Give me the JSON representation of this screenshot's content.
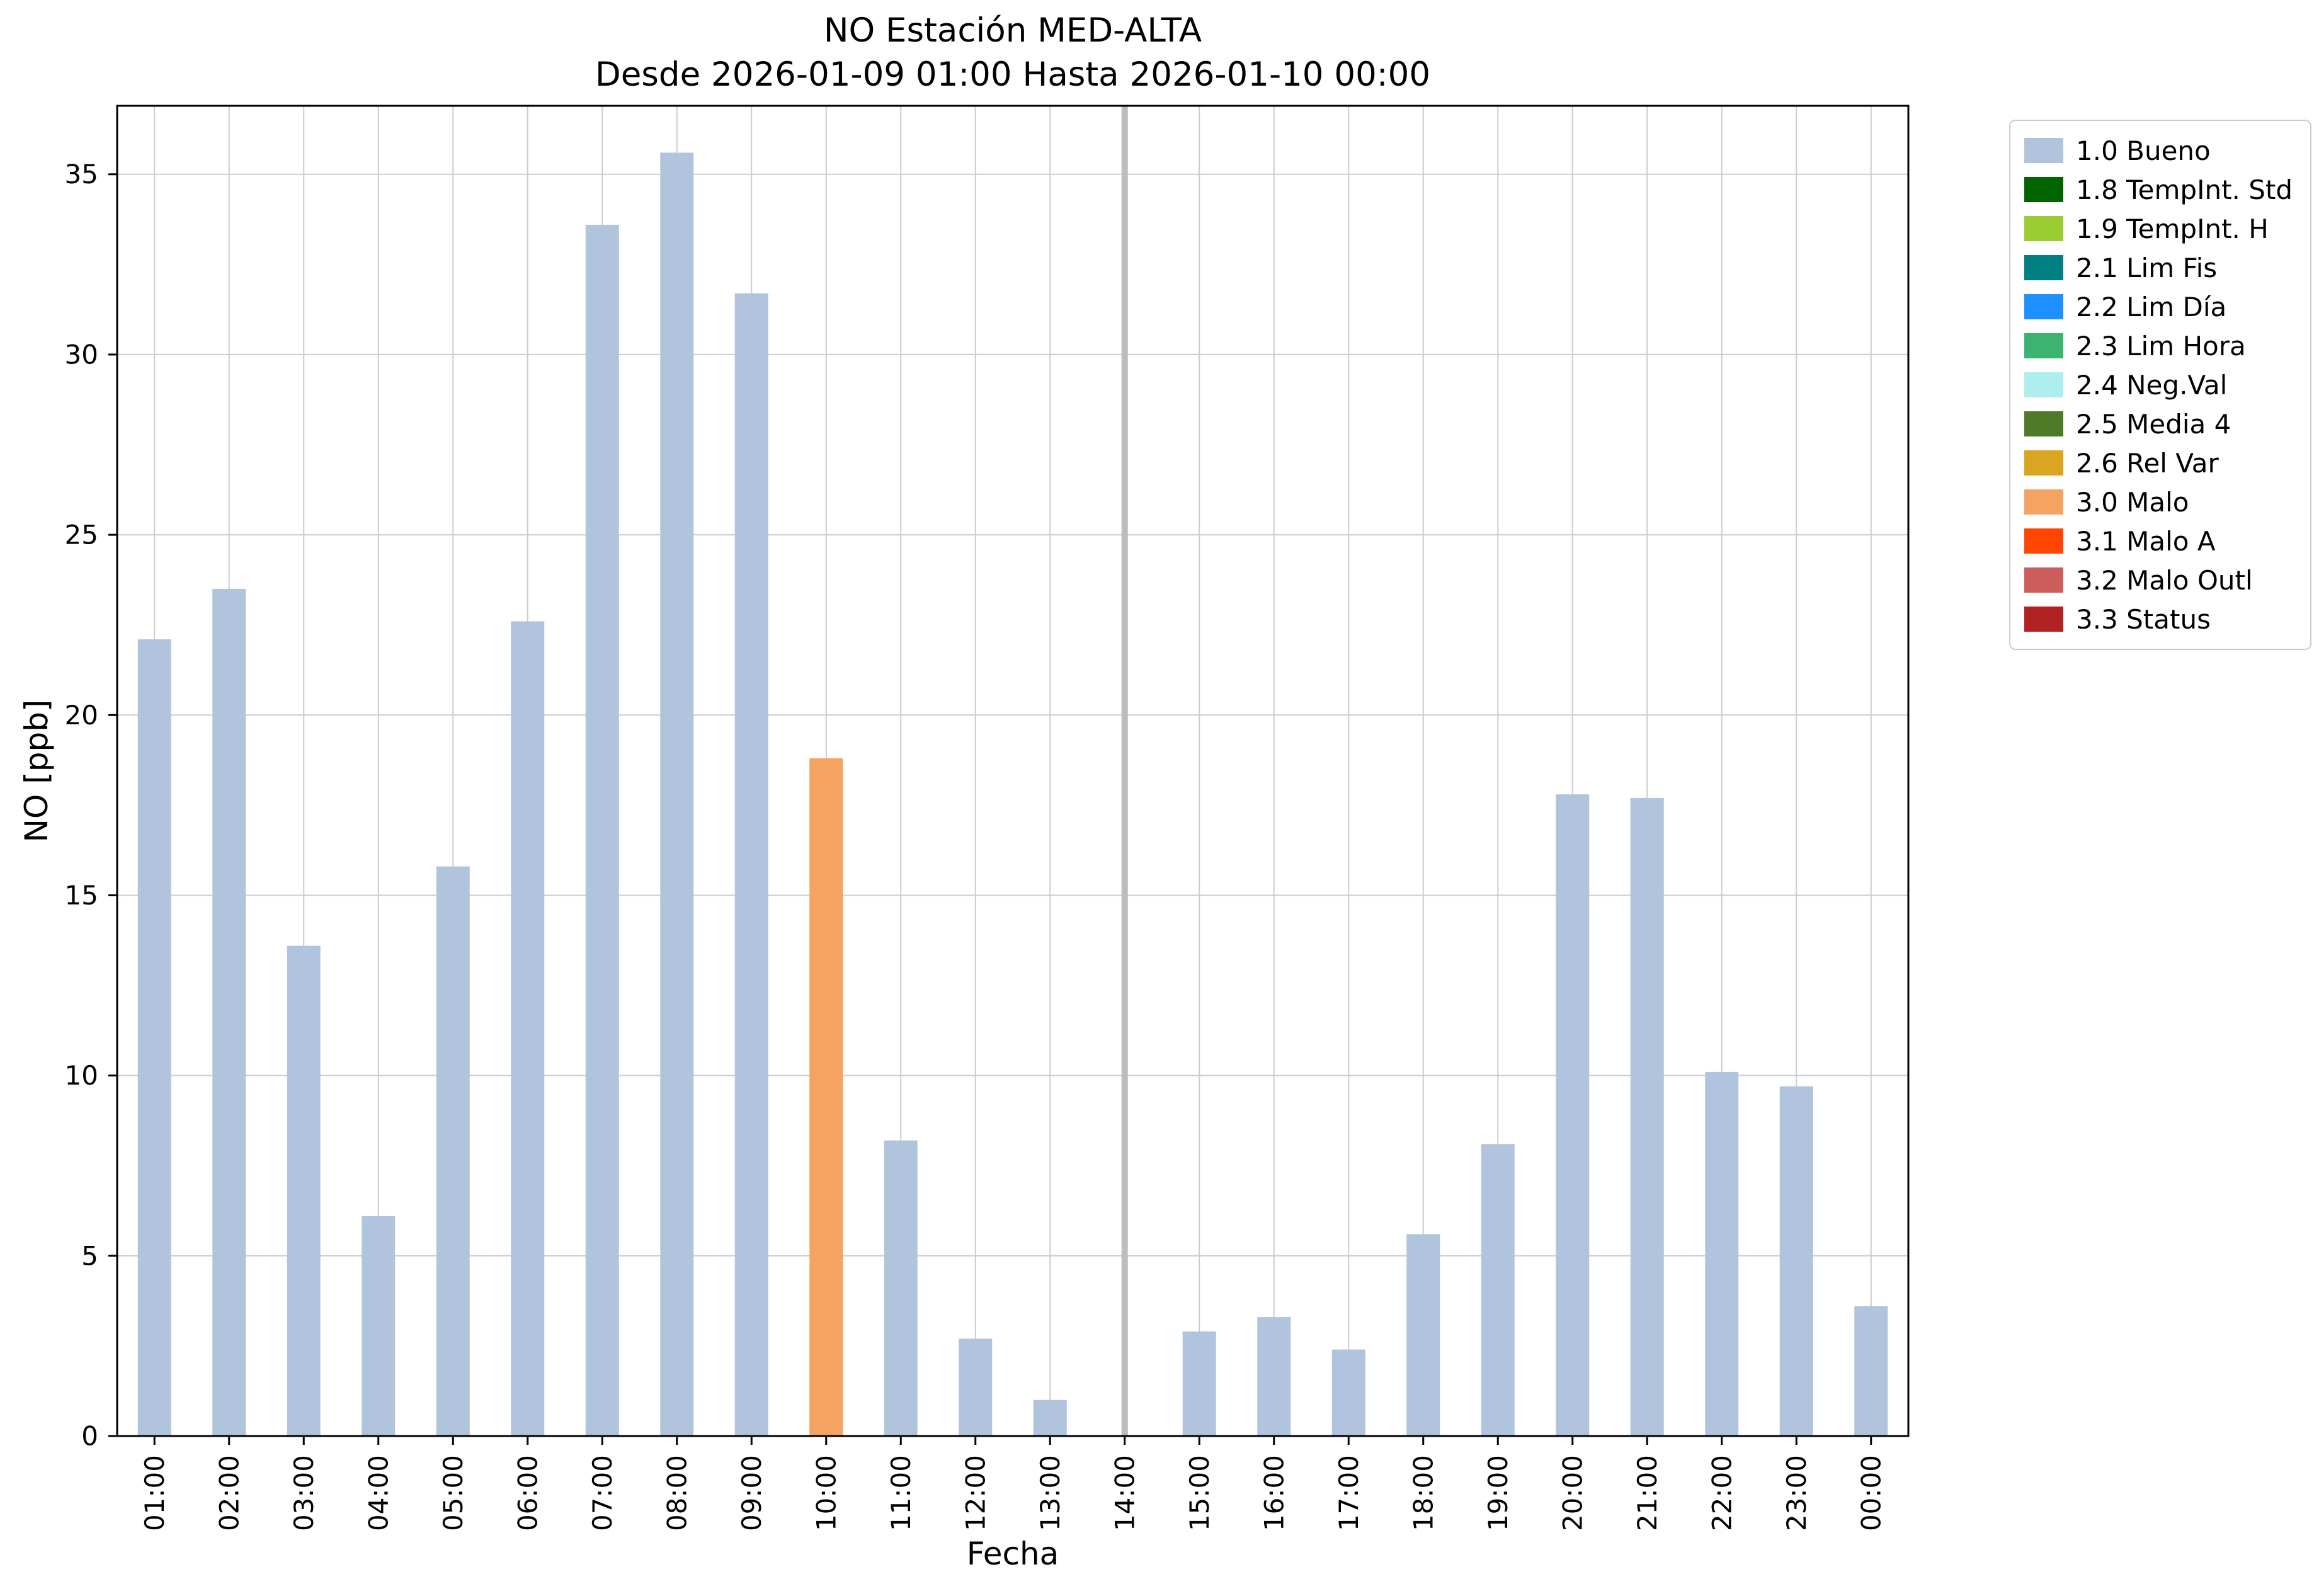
{
  "chart_data": {
    "type": "bar",
    "title": "NO Estación MED-ALTA",
    "subtitle": "Desde 2026-01-09 01:00 Hasta 2026-01-10 00:00",
    "xlabel": "Fecha",
    "ylabel": "NO [ppb]",
    "ylim": [
      0,
      36.9
    ],
    "yticks": [
      0,
      5,
      10,
      15,
      20,
      25,
      30,
      35
    ],
    "grid": true,
    "legend_position": "outside upper right",
    "categories": [
      "01:00",
      "02:00",
      "03:00",
      "04:00",
      "05:00",
      "06:00",
      "07:00",
      "08:00",
      "09:00",
      "10:00",
      "11:00",
      "12:00",
      "13:00",
      "14:00",
      "15:00",
      "16:00",
      "17:00",
      "18:00",
      "19:00",
      "20:00",
      "21:00",
      "22:00",
      "23:00",
      "00:00"
    ],
    "values": [
      22.1,
      23.5,
      13.6,
      6.1,
      15.8,
      22.6,
      33.6,
      35.6,
      31.7,
      18.8,
      8.2,
      2.7,
      1.0,
      null,
      2.9,
      3.3,
      2.4,
      5.6,
      8.1,
      17.8,
      17.7,
      10.1,
      9.7,
      3.6
    ],
    "statuses": [
      "1.0",
      "1.0",
      "1.0",
      "1.0",
      "1.0",
      "1.0",
      "1.0",
      "1.0",
      "1.0",
      "3.0",
      "1.0",
      "1.0",
      "1.0",
      "missing",
      "1.0",
      "1.0",
      "1.0",
      "1.0",
      "1.0",
      "1.0",
      "1.0",
      "1.0",
      "1.0",
      "1.0"
    ],
    "status_colors": {
      "1.0": "#b0c4de",
      "3.0": "#f4a460",
      "missing": "#bdbdbd"
    },
    "legend": [
      {
        "label": "1.0 Bueno",
        "color": "#b0c4de"
      },
      {
        "label": "1.8 TempInt. Std",
        "color": "#006400"
      },
      {
        "label": "1.9 TempInt. H",
        "color": "#9acd32"
      },
      {
        "label": "2.1 Lim Fis",
        "color": "#008080"
      },
      {
        "label": "2.2 Lim Día",
        "color": "#1e90ff"
      },
      {
        "label": "2.3 Lim Hora",
        "color": "#3cb371"
      },
      {
        "label": "2.4 Neg.Val",
        "color": "#afeeee"
      },
      {
        "label": "2.5 Media 4",
        "color": "#4f7a28"
      },
      {
        "label": "2.6 Rel Var",
        "color": "#daa520"
      },
      {
        "label": "3.0 Malo",
        "color": "#f4a460"
      },
      {
        "label": "3.1 Malo A",
        "color": "#ff4500"
      },
      {
        "label": "3.2 Malo Outl",
        "color": "#cd5c5c"
      },
      {
        "label": "3.3 Status",
        "color": "#b22222"
      }
    ]
  }
}
